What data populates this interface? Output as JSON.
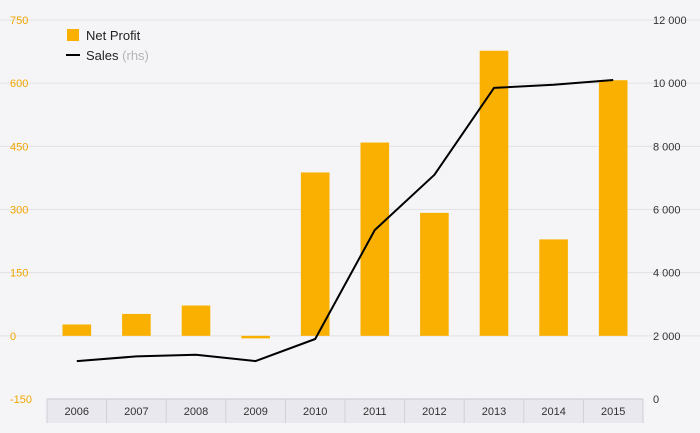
{
  "chart_data": {
    "type": "bar",
    "title": "",
    "xlabel": "",
    "ylabel": "",
    "categories": [
      "2006",
      "2007",
      "2008",
      "2009",
      "2010",
      "2011",
      "2012",
      "2013",
      "2014",
      "2015"
    ],
    "series": [
      {
        "name": "Net Profit",
        "type": "bar",
        "axis": "left",
        "color": "#f9b000",
        "values": [
          27,
          52,
          72,
          -6,
          388,
          459,
          292,
          677,
          229,
          607
        ]
      },
      {
        "name": "Sales",
        "type": "line",
        "axis": "right",
        "color": "#000000",
        "values": [
          1200,
          1350,
          1400,
          1200,
          1900,
          5350,
          7100,
          9850,
          9950,
          10100
        ]
      }
    ],
    "legend": {
      "placement": "top-left",
      "items": [
        {
          "label": "Net Profit",
          "suffix": ""
        },
        {
          "label": "Sales",
          "suffix": "(rhs)"
        }
      ]
    },
    "y_left": {
      "ylim": [
        -150,
        750
      ],
      "ticks": [
        750,
        600,
        450,
        300,
        150,
        0,
        -150
      ],
      "tick_labels": [
        "750",
        "600",
        "450",
        "300",
        "150",
        "0",
        "-150"
      ],
      "color": "#f0a500"
    },
    "y_right": {
      "ylim": [
        0,
        12000
      ],
      "ticks": [
        12000,
        10000,
        8000,
        6000,
        4000,
        2000,
        0
      ],
      "tick_labels": [
        "12 000",
        "10 000",
        "8 000",
        "6 000",
        "4 000",
        "2 000",
        "0"
      ],
      "color": "#333333"
    },
    "grid": true,
    "colors": {
      "background": "#f5f5f7",
      "grid": "#e2e2e6",
      "axis_band": "#e8e8ee",
      "rhs_muted": "#b5b5b5"
    }
  }
}
